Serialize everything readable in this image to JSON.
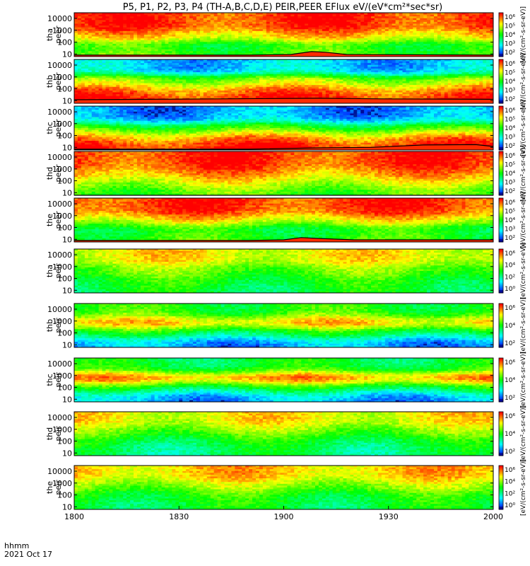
{
  "title": "P5, P1, P2, P3, P4 (TH-A,B,C,D,E) PEIR,PEER EFlux eV/(eV*cm²*sec*sr)",
  "footer": {
    "time_label": "hhmm",
    "date_label": "2021 Oct 17"
  },
  "colors": {
    "low": "#0000c8",
    "mid": "#00ff80",
    "high": "#ff2a00",
    "fill_overlay": "#ff2a00",
    "line": "#000000"
  },
  "chart_data": {
    "type": "heatmap",
    "colorscale": "rainbow",
    "yscale": "log",
    "xaxis": {
      "label": "hhmm",
      "ticks": [
        "1800",
        "1830",
        "1900",
        "1930",
        "2000"
      ],
      "tick_values": [
        1080,
        1110,
        1140,
        1170,
        1200
      ],
      "range": [
        1080,
        1200
      ]
    },
    "y_ticks": [
      "10",
      "100",
      "1000",
      "10000"
    ],
    "y_tick_values": [
      10,
      100,
      1000,
      10000
    ],
    "ylim": [
      6,
      30000
    ],
    "panels": [
      {
        "probe": "tha",
        "species": "peer",
        "ylabel": [
          "tha",
          "peer"
        ],
        "colorbar_ticks": [
          "10⁶",
          "10⁵",
          "10⁴",
          "10³",
          "10²"
        ],
        "colorbar_title": "[eV/(cm²-s-sr-eV)]",
        "bands": [
          {
            "energy": 3000,
            "level": 0.95
          },
          {
            "energy": 300,
            "level": 0.8
          },
          {
            "energy": 40,
            "level": 0.45
          },
          {
            "energy": 12,
            "level": 0.6
          }
        ],
        "overlay": [
          [
            1080,
            8
          ],
          [
            1130,
            8
          ],
          [
            1142,
            9
          ],
          [
            1148,
            16
          ],
          [
            1152,
            14
          ],
          [
            1158,
            9
          ],
          [
            1200,
            8
          ]
        ]
      },
      {
        "probe": "thb",
        "species": "peer",
        "ylabel": [
          "thb",
          "peer"
        ],
        "colorbar_ticks": [
          "10⁶",
          "10⁵",
          "10⁴",
          "10³",
          "10²"
        ],
        "colorbar_title": "[eV/(cm²-s-sr-eV)]",
        "bands": [
          {
            "energy": 5000,
            "level": 0.2
          },
          {
            "energy": 400,
            "level": 0.65
          },
          {
            "energy": 60,
            "level": 0.9
          },
          {
            "energy": 12,
            "level": 0.98
          }
        ],
        "overlay": [
          [
            1080,
            12
          ],
          [
            1120,
            14
          ],
          [
            1150,
            16
          ],
          [
            1170,
            14
          ],
          [
            1200,
            13
          ]
        ]
      },
      {
        "probe": "thc",
        "species": "peer",
        "ylabel": [
          "thc",
          "peer"
        ],
        "colorbar_ticks": [
          "10⁶",
          "10⁵",
          "10⁴",
          "10³",
          "10²"
        ],
        "colorbar_title": "[eV/(cm²-s-sr-eV)]",
        "bands": [
          {
            "energy": 3000,
            "level": 0.15
          },
          {
            "energy": 400,
            "level": 0.55
          },
          {
            "energy": 60,
            "level": 0.85
          },
          {
            "energy": 12,
            "level": 1.0
          }
        ],
        "overlay": [
          [
            1080,
            7
          ],
          [
            1130,
            7
          ],
          [
            1150,
            9
          ],
          [
            1165,
            10
          ],
          [
            1180,
            16
          ],
          [
            1195,
            17
          ],
          [
            1200,
            12
          ]
        ]
      },
      {
        "probe": "thd",
        "species": "peer",
        "ylabel": [
          "thd",
          "peer"
        ],
        "colorbar_ticks": [
          "10⁶",
          "10⁵",
          "10⁴",
          "10³",
          "10²"
        ],
        "colorbar_title": "[eV/(cm²-s-sr-eV)]",
        "bands": [
          {
            "energy": 3000,
            "level": 0.95
          },
          {
            "energy": 400,
            "level": 0.85
          },
          {
            "energy": 60,
            "level": 0.7
          },
          {
            "energy": 12,
            "level": 0.55
          }
        ],
        "overlay": [
          [
            1080,
            6
          ],
          [
            1200,
            6
          ]
        ]
      },
      {
        "probe": "the",
        "species": "peer",
        "ylabel": [
          "the",
          "peer"
        ],
        "colorbar_ticks": [
          "10⁶",
          "10⁵",
          "10⁴",
          "10³",
          "10²"
        ],
        "colorbar_title": "[eV/(cm²-s-sr-eV)]",
        "bands": [
          {
            "energy": 3000,
            "level": 0.95
          },
          {
            "energy": 400,
            "level": 0.75
          },
          {
            "energy": 60,
            "level": 0.45
          },
          {
            "energy": 12,
            "level": 0.55
          }
        ],
        "overlay": [
          [
            1080,
            8
          ],
          [
            1130,
            8
          ],
          [
            1140,
            9
          ],
          [
            1145,
            14
          ],
          [
            1150,
            12
          ],
          [
            1160,
            9
          ],
          [
            1200,
            9
          ]
        ]
      },
      {
        "probe": "tha",
        "species": "peir",
        "ylabel": [
          "tha",
          "peir"
        ],
        "colorbar_ticks": [
          "10⁶",
          "10⁴",
          "10²",
          "10⁰"
        ],
        "colorbar_title": "[eV/(cm²-s-sr-eV)]",
        "bands": [
          {
            "energy": 5000,
            "level": 0.75
          },
          {
            "energy": 500,
            "level": 0.6
          },
          {
            "energy": 60,
            "level": 0.5
          },
          {
            "energy": 12,
            "level": 0.45
          }
        ],
        "overlay": []
      },
      {
        "probe": "thb",
        "species": "peir",
        "ylabel": [
          "thb",
          "peir"
        ],
        "colorbar_ticks": [
          "10⁶",
          "10⁴",
          "10²"
        ],
        "colorbar_title": "[eV/(cm²-s-sr-eV)]",
        "bands": [
          {
            "energy": 5000,
            "level": 0.5
          },
          {
            "energy": 800,
            "level": 0.85
          },
          {
            "energy": 100,
            "level": 0.45
          },
          {
            "energy": 15,
            "level": 0.15
          }
        ],
        "overlay": []
      },
      {
        "probe": "thc",
        "species": "peir",
        "ylabel": [
          "thc",
          "peir"
        ],
        "colorbar_ticks": [
          "10⁶",
          "10⁴",
          "10²"
        ],
        "colorbar_title": "[eV/(cm²-s-sr-eV)]",
        "bands": [
          {
            "energy": 5000,
            "level": 0.45
          },
          {
            "energy": 600,
            "level": 0.9
          },
          {
            "energy": 80,
            "level": 0.45
          },
          {
            "energy": 15,
            "level": 0.15
          }
        ],
        "overlay": []
      },
      {
        "probe": "thd",
        "species": "peir",
        "ylabel": [
          "thd",
          "peir"
        ],
        "colorbar_ticks": [
          "10⁶",
          "10⁴",
          "10²"
        ],
        "colorbar_title": "[eV/(cm²-s-sr-eV)]",
        "bands": [
          {
            "energy": 5000,
            "level": 0.75
          },
          {
            "energy": 600,
            "level": 0.6
          },
          {
            "energy": 80,
            "level": 0.45
          },
          {
            "energy": 15,
            "level": 0.4
          }
        ],
        "overlay": []
      },
      {
        "probe": "the",
        "species": "peir",
        "ylabel": [
          "the",
          "peir"
        ],
        "colorbar_ticks": [
          "10⁶",
          "10⁴",
          "10²",
          "10⁰"
        ],
        "colorbar_title": "[eV/(cm²-s-sr-eV)]",
        "bands": [
          {
            "energy": 5000,
            "level": 0.8
          },
          {
            "energy": 600,
            "level": 0.65
          },
          {
            "energy": 80,
            "level": 0.5
          },
          {
            "energy": 15,
            "level": 0.45
          }
        ],
        "overlay": []
      }
    ]
  }
}
